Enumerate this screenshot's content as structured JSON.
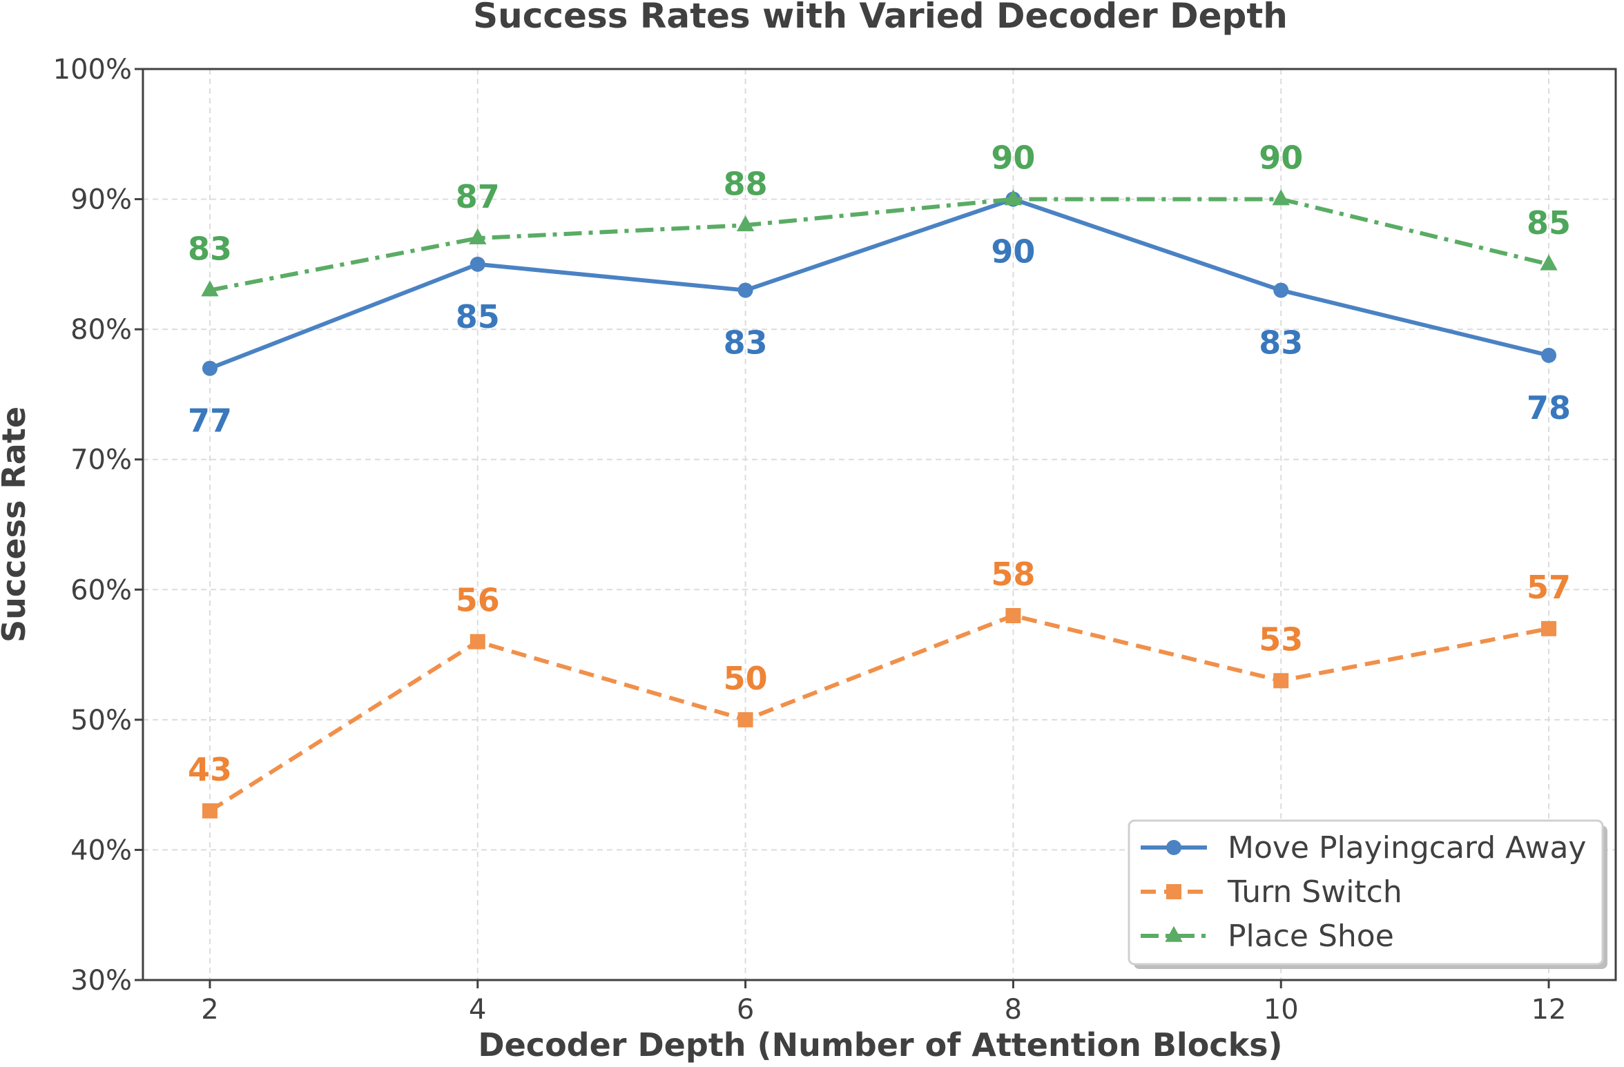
{
  "chart_data": {
    "type": "line",
    "title": "Success Rates with Varied Decoder Depth",
    "xlabel": "Decoder Depth (Number of Attention Blocks)",
    "ylabel": "Success Rate",
    "x": [
      2,
      4,
      6,
      8,
      10,
      12
    ],
    "xticks": [
      "2",
      "4",
      "6",
      "8",
      "10",
      "12"
    ],
    "yticks": [
      "30%",
      "40%",
      "50%",
      "60%",
      "70%",
      "80%",
      "90%",
      "100%"
    ],
    "ylim": [
      30,
      100
    ],
    "xlim": [
      1.5,
      12.5
    ],
    "grid": true,
    "legend_position": "bottom-right",
    "series": [
      {
        "name": "Move Playingcard Away",
        "values": [
          77,
          85,
          83,
          90,
          83,
          78
        ],
        "color": "#4a82c3",
        "label_color": "#3a78bd",
        "marker": "circle",
        "linestyle": "solid",
        "labels": [
          "77",
          "85",
          "83",
          "90",
          "83",
          "78"
        ],
        "label_position": "below"
      },
      {
        "name": "Turn Switch",
        "values": [
          43,
          56,
          50,
          58,
          53,
          57
        ],
        "color": "#f0904a",
        "label_color": "#ee8436",
        "marker": "square",
        "linestyle": "dashed",
        "labels": [
          "43",
          "56",
          "50",
          "58",
          "53",
          "57"
        ],
        "label_position": "above"
      },
      {
        "name": "Place Shoe",
        "values": [
          83,
          87,
          88,
          90,
          90,
          85
        ],
        "color": "#5aac64",
        "label_color": "#4ea65a",
        "marker": "triangle",
        "linestyle": "dashdot",
        "labels": [
          "83",
          "87",
          "88",
          "90",
          "90",
          "85"
        ],
        "label_position": "above"
      }
    ]
  }
}
